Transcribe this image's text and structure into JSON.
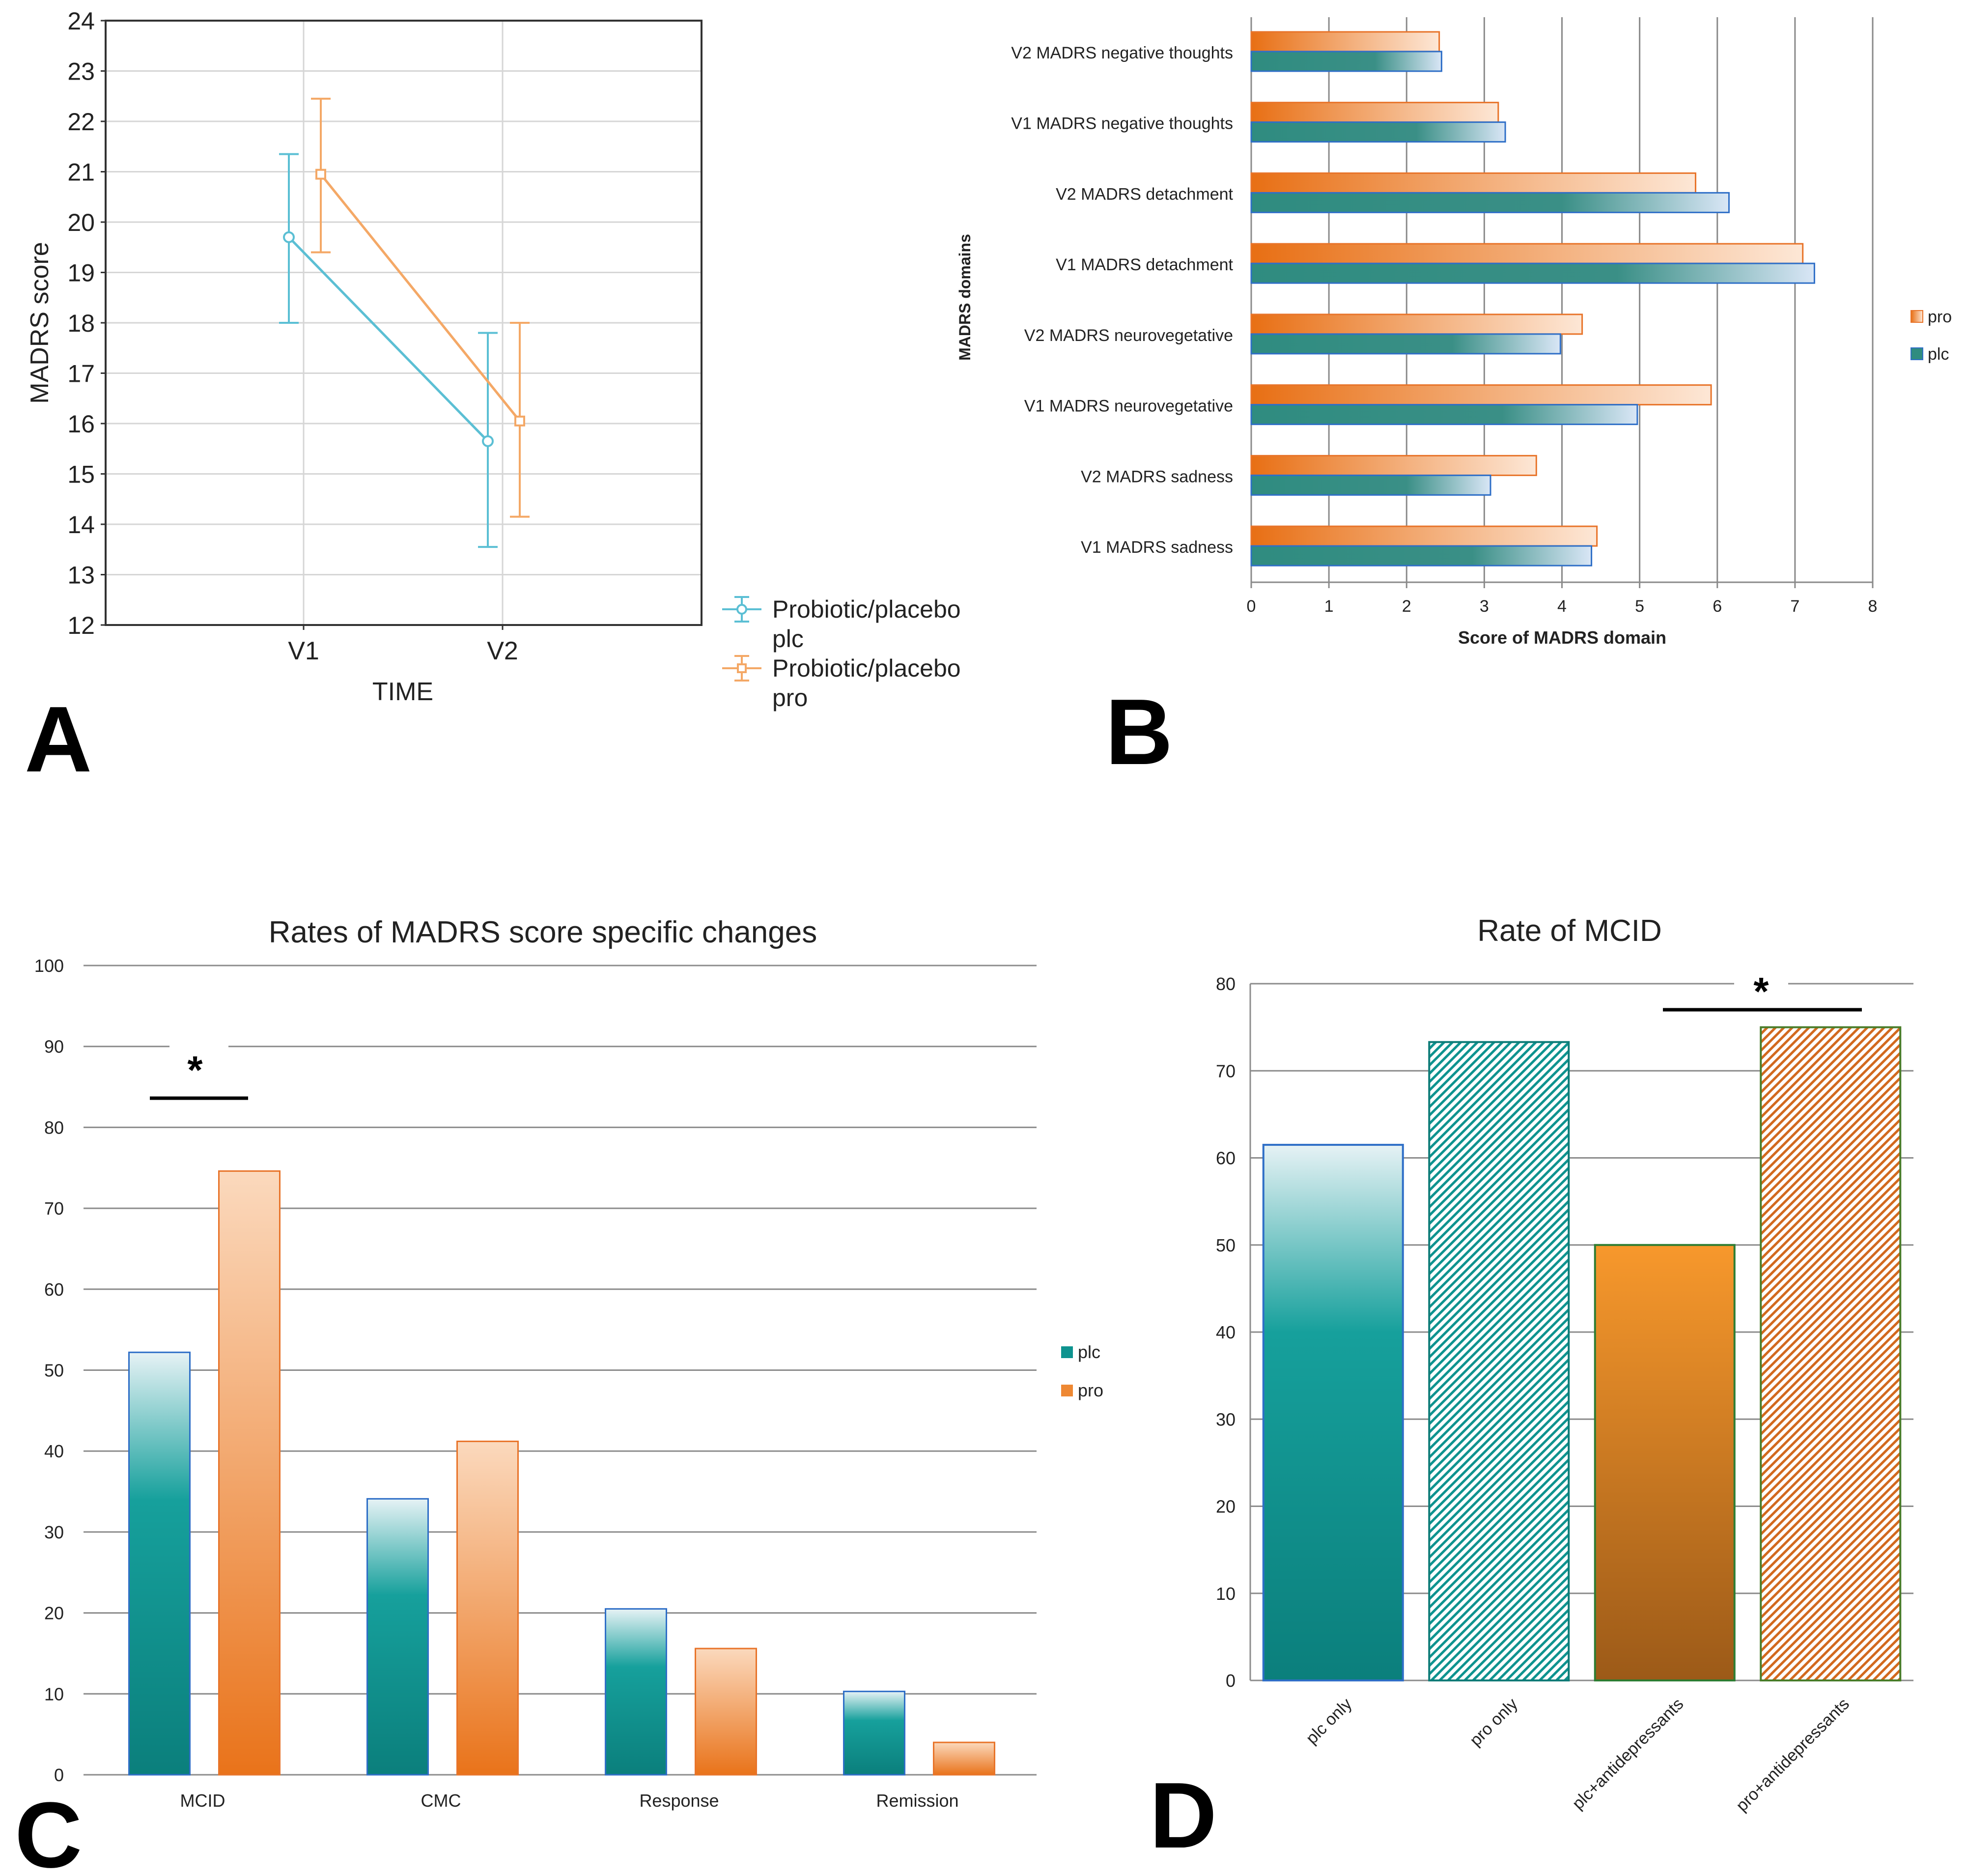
{
  "figure": {
    "panel_letters": [
      "A",
      "B",
      "C",
      "D"
    ]
  },
  "colors": {
    "plc_teal": "#0e938f",
    "plc_line": "#5bbfd4",
    "pro_orange": "#ea7a22",
    "pro_line": "#f4a866",
    "grid": "#bdbdbd",
    "axis": "#333333",
    "text": "#222222",
    "blue_edge": "#2f6fc7"
  },
  "chart_data": [
    {
      "panel": "A",
      "type": "line",
      "title": "",
      "xlabel": "TIME",
      "ylabel": "MADRS score",
      "categories": [
        "V1",
        "V2"
      ],
      "ylim": [
        12,
        24
      ],
      "yticks": [
        "12",
        "13",
        "14",
        "15",
        "16",
        "17",
        "18",
        "19",
        "20",
        "21",
        "22",
        "23",
        "24"
      ],
      "grid": true,
      "legend_position": "right",
      "series": [
        {
          "name": "Probiotic/placebo",
          "name2": "plc",
          "color": "#5bbfd4",
          "values": [
            19.7,
            15.65
          ],
          "lower": [
            18.0,
            13.55
          ],
          "upper": [
            21.35,
            17.8
          ]
        },
        {
          "name": "Probiotic/placebo",
          "name2": "pro",
          "color": "#f4a866",
          "values": [
            20.95,
            16.05
          ],
          "lower": [
            19.4,
            14.15
          ],
          "upper": [
            22.45,
            18.0
          ]
        }
      ]
    },
    {
      "panel": "B",
      "type": "bar",
      "orientation": "horizontal",
      "title": "",
      "xlabel": "Score of MADRS domain",
      "ylabel": "MADRS domains",
      "xlim": [
        0,
        8
      ],
      "xticks": [
        "0",
        "1",
        "2",
        "3",
        "4",
        "5",
        "6",
        "7",
        "8"
      ],
      "categories": [
        "V2 MADRS negative thoughts",
        "V1 MADRS negative thoughts",
        "V2 MADRS detachment",
        "V1 MADRS detachment",
        "V2 MADRS neurovegetative",
        "V1 MADRS neurovegetative",
        "V2 MADRS sadness",
        "V1 MADRS sadness"
      ],
      "legend_position": "right",
      "series": [
        {
          "name": "pro",
          "values": [
            2.42,
            3.18,
            5.72,
            7.1,
            4.26,
            5.92,
            3.67,
            4.45
          ]
        },
        {
          "name": "plc",
          "values": [
            2.45,
            3.27,
            6.15,
            7.25,
            3.98,
            4.97,
            3.08,
            4.38
          ]
        }
      ]
    },
    {
      "panel": "C",
      "type": "bar",
      "title": "Rates of MADRS score specific changes",
      "xlabel": "",
      "ylabel": "",
      "ylim": [
        0,
        100
      ],
      "yticks": [
        "0",
        "10",
        "20",
        "30",
        "40",
        "50",
        "60",
        "70",
        "80",
        "90",
        "100"
      ],
      "categories": [
        "MCID",
        "CMC",
        "Response",
        "Remission"
      ],
      "legend_position": "right",
      "significance": {
        "category": "MCID",
        "label": "*"
      },
      "series": [
        {
          "name": "plc",
          "values": [
            52.2,
            34.1,
            20.5,
            10.3
          ]
        },
        {
          "name": "pro",
          "values": [
            74.6,
            41.2,
            15.6,
            4.0
          ]
        }
      ]
    },
    {
      "panel": "D",
      "type": "bar",
      "title": "Rate of MCID",
      "xlabel": "",
      "ylabel": "",
      "ylim": [
        0,
        80
      ],
      "yticks": [
        "0",
        "10",
        "20",
        "30",
        "40",
        "50",
        "60",
        "70",
        "80"
      ],
      "categories": [
        "plc only",
        "pro only",
        "plc+antidepressants",
        "pro+antidepressants"
      ],
      "values": [
        61.5,
        73.3,
        50.0,
        75.0
      ],
      "significance": {
        "between": [
          "plc+antidepressants",
          "pro+antidepressants"
        ],
        "label": "*"
      }
    }
  ]
}
